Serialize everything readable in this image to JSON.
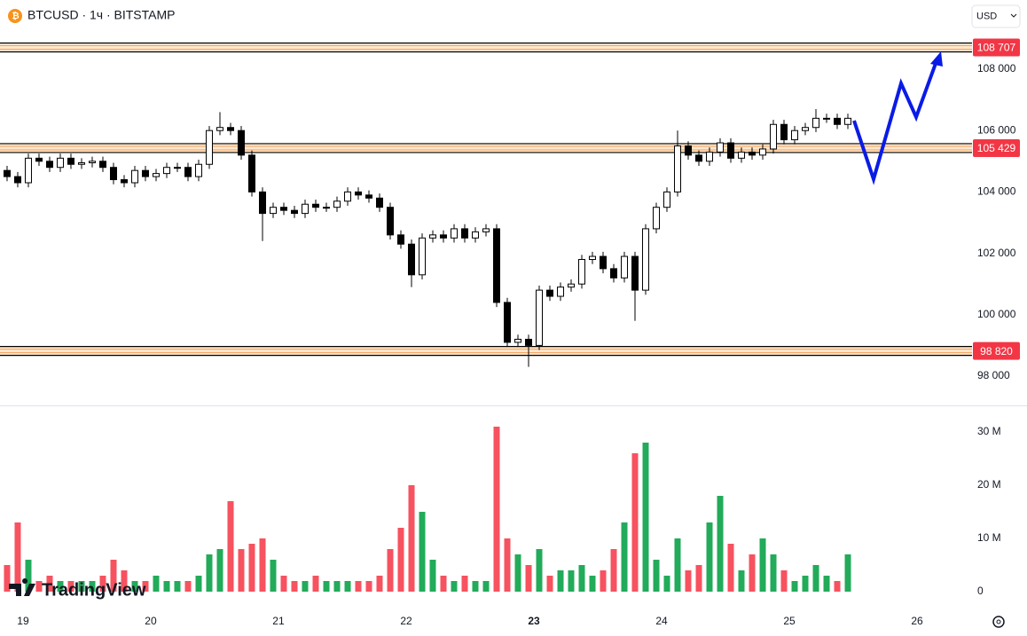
{
  "header": {
    "symbol": "BTCUSD · 1ч · BITSTAMP",
    "currency": "USD"
  },
  "logo": "TradingView",
  "chart_data": {
    "type": "candlestick",
    "x": [
      -3,
      -1,
      1,
      3,
      5,
      7,
      9,
      11,
      13,
      15,
      17,
      19,
      21,
      23,
      25,
      27,
      29,
      31,
      33,
      35,
      37,
      39,
      41,
      43,
      45,
      47,
      49,
      51,
      53,
      55,
      57,
      59,
      61,
      63,
      65,
      67,
      69,
      71,
      73,
      75,
      77,
      79,
      81,
      83,
      85,
      87,
      89,
      91,
      93,
      95,
      97,
      99,
      101,
      103,
      105,
      107,
      109,
      111,
      113,
      115,
      117,
      119,
      121,
      123,
      125,
      127,
      129,
      131,
      133,
      135,
      137,
      139,
      141,
      143,
      145,
      147,
      149,
      151,
      153,
      155
    ],
    "open": [
      104700,
      104500,
      104300,
      105100,
      105000,
      104800,
      105100,
      104900,
      104950,
      105000,
      104800,
      104400,
      104300,
      104700,
      104500,
      104600,
      104800,
      104800,
      104500,
      104900,
      106000,
      106100,
      106000,
      105200,
      104000,
      103300,
      103500,
      103400,
      103300,
      103600,
      103500,
      103500,
      103700,
      104000,
      103900,
      103800,
      103500,
      102600,
      102300,
      101300,
      102500,
      102600,
      102500,
      102800,
      102500,
      102700,
      102800,
      100400,
      99100,
      99200,
      99000,
      100800,
      100600,
      100900,
      101000,
      101800,
      101900,
      101500,
      101200,
      101900,
      100800,
      102800,
      103500,
      104000,
      105500,
      105200,
      105000,
      105300,
      105600,
      105100,
      105300,
      105200,
      105400,
      106200,
      105700,
      106000,
      106100,
      106400,
      106400,
      106200
    ],
    "high": [
      104850,
      104650,
      105250,
      105250,
      105150,
      105250,
      105250,
      105100,
      105150,
      105150,
      104950,
      104550,
      104850,
      104850,
      104750,
      104950,
      104950,
      104950,
      105050,
      106150,
      106600,
      106250,
      106150,
      105350,
      104150,
      103650,
      103650,
      103550,
      103750,
      103750,
      103650,
      103850,
      104150,
      104150,
      104050,
      103950,
      103650,
      102750,
      102450,
      102650,
      102750,
      102750,
      102950,
      102950,
      102850,
      102950,
      102950,
      100550,
      99350,
      99350,
      100950,
      100950,
      101050,
      101150,
      101950,
      102050,
      102050,
      101650,
      102050,
      102050,
      102950,
      103650,
      104150,
      106000,
      105650,
      105350,
      105450,
      105750,
      105750,
      105450,
      105450,
      105550,
      106350,
      106350,
      106150,
      106250,
      106700,
      106550,
      106550,
      106550
    ],
    "low": [
      104350,
      104150,
      104150,
      104850,
      104650,
      104650,
      104750,
      104750,
      104800,
      104650,
      104250,
      104150,
      104150,
      104350,
      104350,
      104450,
      104650,
      104350,
      104350,
      104750,
      105850,
      105850,
      105050,
      103850,
      102400,
      103150,
      103250,
      103150,
      103150,
      103350,
      103350,
      103350,
      103550,
      103750,
      103650,
      103350,
      102450,
      102150,
      100900,
      101150,
      102350,
      102350,
      102350,
      102350,
      102350,
      102550,
      100250,
      98950,
      98950,
      98300,
      98850,
      100450,
      100450,
      100750,
      100850,
      101650,
      101350,
      101050,
      101050,
      99800,
      100650,
      102650,
      103350,
      103850,
      105050,
      104850,
      104850,
      105150,
      104950,
      104950,
      105050,
      105050,
      105250,
      105550,
      105550,
      105850,
      105950,
      106250,
      106050,
      106050
    ],
    "close": [
      104500,
      104300,
      105100,
      105000,
      104800,
      105100,
      104900,
      104950,
      105000,
      104800,
      104400,
      104300,
      104700,
      104500,
      104600,
      104800,
      104800,
      104500,
      104900,
      106000,
      106100,
      106000,
      105200,
      104000,
      103300,
      103500,
      103400,
      103300,
      103600,
      103500,
      103500,
      103700,
      104000,
      103900,
      103800,
      103500,
      102600,
      102300,
      101300,
      102500,
      102600,
      102500,
      102800,
      102500,
      102700,
      102800,
      100400,
      99100,
      99200,
      99000,
      100800,
      100600,
      100900,
      101000,
      101800,
      101900,
      101500,
      101200,
      101900,
      100800,
      102800,
      103500,
      104000,
      105500,
      105200,
      105000,
      105300,
      105600,
      105100,
      105300,
      105200,
      105400,
      106200,
      105700,
      106000,
      106100,
      106400,
      106400,
      106200,
      106400
    ],
    "up_color": "#ffffff",
    "down_color": "#000000",
    "wick_color": "#000000",
    "xlim": [
      -4.33,
      177.33
    ],
    "xticks": [
      {
        "value": 0,
        "label": "19"
      },
      {
        "value": 24,
        "label": "20"
      },
      {
        "value": 48,
        "label": "21"
      },
      {
        "value": 72,
        "label": "22"
      },
      {
        "value": 96,
        "label": "23",
        "bold": true
      },
      {
        "value": 120,
        "label": "24"
      },
      {
        "value": 144,
        "label": "25"
      },
      {
        "value": 168,
        "label": "26"
      }
    ],
    "ylim": [
      97046,
      110254
    ],
    "yticks": [
      {
        "value": 98000,
        "label": "98 000"
      },
      {
        "value": 100000,
        "label": "100 000"
      },
      {
        "value": 102000,
        "label": "102 000"
      },
      {
        "value": 104000,
        "label": "104 000"
      },
      {
        "value": 106000,
        "label": "106 000"
      },
      {
        "value": 108000,
        "label": "108 000"
      }
    ],
    "levels": [
      {
        "value": 108707,
        "label": "108 707"
      },
      {
        "value": 105429,
        "label": "105 429"
      },
      {
        "value": 98820,
        "label": "98 820"
      }
    ],
    "level_color": "#f23645",
    "volume": {
      "values": [
        5000000,
        13000000,
        6000000,
        2000000,
        3000000,
        2000000,
        2000000,
        2000000,
        2000000,
        3000000,
        6000000,
        4000000,
        2000000,
        2000000,
        3000000,
        2000000,
        2000000,
        2000000,
        3000000,
        7000000,
        8000000,
        17000000,
        8000000,
        9000000,
        10000000,
        6000000,
        3000000,
        2000000,
        2000000,
        3000000,
        2000000,
        2000000,
        2000000,
        2000000,
        2000000,
        3000000,
        8000000,
        12000000,
        20000000,
        15000000,
        6000000,
        3000000,
        2000000,
        3000000,
        2000000,
        2000000,
        31000000,
        10000000,
        7000000,
        5000000,
        8000000,
        3000000,
        4000000,
        4000000,
        5000000,
        3000000,
        4000000,
        8000000,
        13000000,
        26000000,
        28000000,
        6000000,
        3000000,
        10000000,
        4000000,
        5000000,
        13000000,
        18000000,
        9000000,
        4000000,
        7000000,
        10000000,
        7000000,
        4000000,
        2000000,
        3000000,
        5000000,
        3000000,
        2000000,
        7000000
      ],
      "up_color": "#22ab5a",
      "down_color": "#f7525f",
      "ylim": [
        -3000000,
        35000000
      ],
      "yticks": [
        0,
        {
          "value": 10000000,
          "label": "10 M"
        },
        {
          "value": 20000000,
          "label": "20 M"
        },
        {
          "value": 30000000,
          "label": "30 M"
        }
      ]
    }
  }
}
